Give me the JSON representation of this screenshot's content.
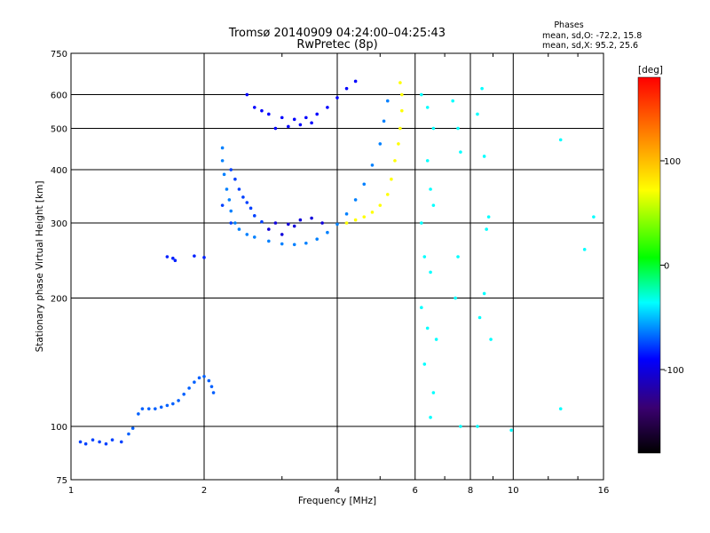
{
  "chart_data": {
    "type": "scatter",
    "title": "Tromsø 20140909 04:24:00–04:25:43",
    "subtitle": "RwPretec (8p)",
    "xlabel": "Frequency [MHz]",
    "ylabel": "Stationary phase Virtual Height [km]",
    "x_scale": "log",
    "y_scale": "log",
    "xlim": [
      1,
      16
    ],
    "ylim": [
      75,
      750
    ],
    "x_ticks": [
      1,
      2,
      4,
      6,
      8,
      10,
      16
    ],
    "y_ticks": [
      75,
      100,
      200,
      300,
      400,
      500,
      600,
      750
    ],
    "grid": true,
    "info": {
      "title": "Phases",
      "line1": "mean, sd,O:  -72.2, 15.8",
      "line2": "mean, sd,X:   95.2, 25.6"
    },
    "colorbar": {
      "label": "[deg]",
      "min": -180,
      "max": 180,
      "ticks": [
        100,
        0,
        -100
      ],
      "colors": [
        "#000000",
        "#3a0070",
        "#0000ff",
        "#00ffff",
        "#00ff00",
        "#ffff00",
        "#ff8000",
        "#ff0000"
      ]
    },
    "traces": [
      {
        "name": "",
        "phase": -90,
        "points": [
          [
            1.05,
            92
          ],
          [
            1.08,
            91
          ],
          [
            1.12,
            93
          ],
          [
            1.16,
            92
          ],
          [
            1.2,
            91
          ],
          [
            1.24,
            93
          ],
          [
            1.3,
            92
          ]
        ]
      },
      {
        "name": "",
        "phase": -85,
        "points": [
          [
            1.35,
            96
          ],
          [
            1.38,
            99
          ],
          [
            1.42,
            107
          ],
          [
            1.45,
            110
          ],
          [
            1.5,
            110
          ],
          [
            1.55,
            110
          ],
          [
            1.6,
            111
          ],
          [
            1.65,
            112
          ],
          [
            1.7,
            113
          ],
          [
            1.75,
            115
          ],
          [
            1.8,
            119
          ],
          [
            1.85,
            123
          ],
          [
            1.9,
            127
          ],
          [
            1.95,
            130
          ],
          [
            2.0,
            131
          ],
          [
            2.05,
            128
          ],
          [
            2.08,
            124
          ],
          [
            2.1,
            120
          ]
        ]
      },
      {
        "name": "",
        "phase": -95,
        "points": [
          [
            1.65,
            250
          ],
          [
            1.7,
            248
          ],
          [
            1.72,
            245
          ],
          [
            1.9,
            251
          ],
          [
            2.0,
            249
          ]
        ]
      },
      {
        "name": "",
        "phase": -80,
        "points": [
          [
            2.2,
            450
          ],
          [
            2.2,
            420
          ],
          [
            2.22,
            390
          ],
          [
            2.25,
            360
          ],
          [
            2.28,
            340
          ],
          [
            2.3,
            320
          ],
          [
            2.35,
            300
          ],
          [
            2.4,
            290
          ],
          [
            2.5,
            282
          ],
          [
            2.6,
            278
          ],
          [
            2.8,
            272
          ],
          [
            3.0,
            268
          ],
          [
            3.2,
            267
          ],
          [
            3.4,
            269
          ],
          [
            3.6,
            275
          ],
          [
            3.8,
            285
          ],
          [
            4.0,
            298
          ],
          [
            4.2,
            315
          ],
          [
            4.4,
            340
          ],
          [
            4.6,
            370
          ],
          [
            4.8,
            410
          ],
          [
            5.0,
            460
          ],
          [
            5.1,
            520
          ],
          [
            5.2,
            580
          ]
        ]
      },
      {
        "name": "",
        "phase": -90,
        "points": [
          [
            2.3,
            400
          ],
          [
            2.35,
            380
          ],
          [
            2.4,
            360
          ],
          [
            2.45,
            345
          ],
          [
            2.5,
            335
          ],
          [
            2.55,
            325
          ],
          [
            2.6,
            312
          ],
          [
            2.7,
            302
          ],
          [
            2.2,
            330
          ],
          [
            2.3,
            300
          ]
        ]
      },
      {
        "name": "",
        "phase": -110,
        "points": [
          [
            2.9,
            300
          ],
          [
            3.1,
            298
          ],
          [
            3.3,
            305
          ],
          [
            3.5,
            308
          ],
          [
            3.7,
            300
          ],
          [
            3.2,
            295
          ],
          [
            2.8,
            290
          ],
          [
            3.0,
            282
          ]
        ]
      },
      {
        "name": "",
        "phase": -100,
        "points": [
          [
            2.8,
            540
          ],
          [
            3.0,
            530
          ],
          [
            3.2,
            525
          ],
          [
            3.4,
            530
          ],
          [
            3.6,
            540
          ],
          [
            3.8,
            560
          ],
          [
            4.0,
            590
          ],
          [
            4.2,
            620
          ],
          [
            4.4,
            645
          ],
          [
            2.9,
            500
          ],
          [
            3.1,
            505
          ],
          [
            3.3,
            510
          ],
          [
            3.5,
            515
          ],
          [
            2.6,
            560
          ],
          [
            2.7,
            550
          ],
          [
            2.5,
            600
          ]
        ]
      },
      {
        "name": "",
        "phase": 60,
        "points": [
          [
            4.2,
            300
          ],
          [
            4.4,
            305
          ],
          [
            4.6,
            310
          ],
          [
            4.8,
            318
          ],
          [
            5.0,
            330
          ],
          [
            5.2,
            350
          ],
          [
            5.3,
            380
          ],
          [
            5.4,
            420
          ],
          [
            5.5,
            460
          ],
          [
            5.55,
            500
          ],
          [
            5.6,
            550
          ],
          [
            5.6,
            600
          ],
          [
            5.55,
            640
          ]
        ]
      },
      {
        "name": "",
        "phase": -60,
        "points": [
          [
            6.2,
            600
          ],
          [
            6.4,
            560
          ],
          [
            6.6,
            500
          ],
          [
            6.4,
            420
          ],
          [
            6.5,
            360
          ],
          [
            6.2,
            300
          ],
          [
            6.6,
            330
          ],
          [
            6.3,
            250
          ],
          [
            6.5,
            230
          ],
          [
            6.2,
            190
          ],
          [
            6.4,
            170
          ],
          [
            6.7,
            160
          ],
          [
            6.3,
            140
          ],
          [
            6.6,
            120
          ],
          [
            6.5,
            105
          ],
          [
            7.3,
            580
          ],
          [
            7.5,
            500
          ],
          [
            7.6,
            440
          ],
          [
            7.5,
            250
          ],
          [
            7.4,
            200
          ],
          [
            7.6,
            100
          ],
          [
            8.5,
            620
          ],
          [
            8.3,
            540
          ],
          [
            8.6,
            430
          ],
          [
            8.8,
            310
          ],
          [
            8.7,
            290
          ],
          [
            8.6,
            205
          ],
          [
            8.4,
            180
          ],
          [
            8.9,
            160
          ],
          [
            8.3,
            100
          ],
          [
            9.9,
            98
          ],
          [
            12.8,
            470
          ],
          [
            12.8,
            110
          ],
          [
            14.5,
            260
          ],
          [
            15.2,
            310
          ]
        ]
      }
    ]
  }
}
